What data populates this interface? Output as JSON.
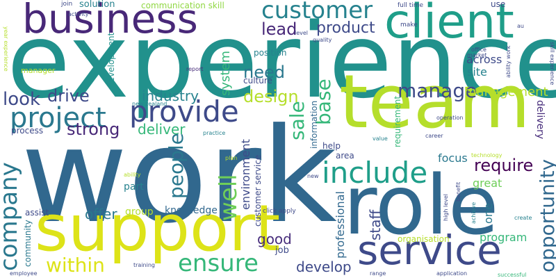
{
  "words": [
    {
      "text": "experience",
      "color": "#21918c"
    },
    {
      "text": "work",
      "color": "#31688e"
    },
    {
      "text": "team",
      "color": "#b5de2b"
    },
    {
      "text": "support",
      "color": "#dde318"
    },
    {
      "text": "role",
      "color": "#31688e"
    },
    {
      "text": "client",
      "color": "#1f9e89"
    },
    {
      "text": "business",
      "color": "#482878"
    },
    {
      "text": "service",
      "color": "#3e4a89"
    },
    {
      "text": "customer",
      "color": "#26828e"
    },
    {
      "text": "provide",
      "color": "#3e4a89"
    },
    {
      "text": "project",
      "color": "#2a788e"
    },
    {
      "text": "include",
      "color": "#1f9e89"
    },
    {
      "text": "company",
      "color": "#2a788e"
    },
    {
      "text": "ensure",
      "color": "#35b779"
    },
    {
      "text": "well",
      "color": "#6ece58"
    },
    {
      "text": "people",
      "color": "#2a788e"
    },
    {
      "text": "manage",
      "color": "#3e4a89"
    },
    {
      "text": "require",
      "color": "#440154"
    },
    {
      "text": "look",
      "color": "#3e4a89"
    },
    {
      "text": "within",
      "color": "#dde318"
    },
    {
      "text": "opportunity",
      "color": "#31688e"
    },
    {
      "text": "sale",
      "color": "#35b779"
    },
    {
      "text": "base",
      "color": "#35b779"
    },
    {
      "text": "design",
      "color": "#b5de2b"
    },
    {
      "text": "drive",
      "color": "#3e4a89"
    },
    {
      "text": "strong",
      "color": "#482878"
    },
    {
      "text": "lead",
      "color": "#482878"
    },
    {
      "text": "product",
      "color": "#3e4a89"
    },
    {
      "text": "need",
      "color": "#2a788e"
    },
    {
      "text": "deliver",
      "color": "#35b779"
    },
    {
      "text": "industry",
      "color": "#26828e"
    },
    {
      "text": "management",
      "color": "#b5de2b"
    },
    {
      "text": "develop",
      "color": "#3e4a89"
    },
    {
      "text": "good",
      "color": "#472d7b"
    },
    {
      "text": "offer",
      "color": "#2a788e"
    },
    {
      "text": "staff",
      "color": "#3e4a89"
    },
    {
      "text": "program",
      "color": "#35b779"
    },
    {
      "text": "system",
      "color": "#35b779"
    },
    {
      "text": "environment",
      "color": "#3e4a89"
    },
    {
      "text": "focus",
      "color": "#2a788e"
    },
    {
      "text": "great",
      "color": "#6ece58"
    },
    {
      "text": "across",
      "color": "#3e4a89"
    },
    {
      "text": "site",
      "color": "#26828e"
    },
    {
      "text": "professional",
      "color": "#31688e"
    },
    {
      "text": "one",
      "color": "#2a788e"
    },
    {
      "text": "knowledge",
      "color": "#31688e"
    },
    {
      "text": "part",
      "color": "#26828e"
    },
    {
      "text": "group",
      "color": "#b5de2b"
    },
    {
      "text": "solution",
      "color": "#26828e"
    },
    {
      "text": "communication skill",
      "color": "#90d743"
    },
    {
      "text": "position",
      "color": "#26828e"
    },
    {
      "text": "culture",
      "color": "#3e4a89"
    },
    {
      "text": "development",
      "color": "#21918c"
    },
    {
      "text": "help",
      "color": "#3e4a89"
    },
    {
      "text": "area",
      "color": "#3e4a89"
    },
    {
      "text": "job",
      "color": "#3e4a89"
    },
    {
      "text": "organisation",
      "color": "#b5de2b"
    },
    {
      "text": "delivery",
      "color": "#472d7b"
    },
    {
      "text": "customer service",
      "color": "#3e4a89"
    },
    {
      "text": "information",
      "color": "#31688e"
    },
    {
      "text": "requirement",
      "color": "#35b779"
    },
    {
      "text": "assist",
      "color": "#3e4a89"
    },
    {
      "text": "community",
      "color": "#2a788e"
    },
    {
      "text": "manager",
      "color": "#b5de2b"
    },
    {
      "text": "process",
      "color": "#3e4a89"
    },
    {
      "text": "use",
      "color": "#3e4a89"
    },
    {
      "text": "full time",
      "color": "#3e4a89"
    },
    {
      "text": "join",
      "color": "#3e4a89"
    },
    {
      "text": "make",
      "color": "#3e4a89"
    },
    {
      "text": "level",
      "color": "#3e4a89"
    },
    {
      "text": "quality",
      "color": "#3e4a89"
    },
    {
      "text": "report",
      "color": "#472d7b"
    },
    {
      "text": "new zealand",
      "color": "#26828e"
    },
    {
      "text": "activity",
      "color": "#3e4a89"
    },
    {
      "text": "operation",
      "color": "#3e4a89"
    },
    {
      "text": "career",
      "color": "#3e4a89"
    },
    {
      "text": "value",
      "color": "#26828e"
    },
    {
      "text": "practice",
      "color": "#26828e"
    },
    {
      "text": "plan",
      "color": "#b5de2b"
    },
    {
      "text": "ability",
      "color": "#b5de2b"
    },
    {
      "text": "new",
      "color": "#3e4a89"
    },
    {
      "text": "click apply",
      "color": "#3e4a89"
    },
    {
      "text": "training",
      "color": "#3e4a89"
    },
    {
      "text": "employee",
      "color": "#3e4a89"
    },
    {
      "text": "range",
      "color": "#3e4a89"
    },
    {
      "text": "application",
      "color": "#3e4a89"
    },
    {
      "text": "successful",
      "color": "#35b779"
    },
    {
      "text": "technology",
      "color": "#b5de2b"
    },
    {
      "text": "create",
      "color": "#26828e"
    },
    {
      "text": "office",
      "color": "#3e4a89"
    },
    {
      "text": "market",
      "color": "#3e4a89"
    },
    {
      "text": "au",
      "color": "#3e4a89"
    },
    {
      "text": "ability work",
      "color": "#3e4a89"
    },
    {
      "text": "skill experience",
      "color": "#3e4a89"
    },
    {
      "text": "year experience",
      "color": "#b5de2b"
    },
    {
      "text": "technical",
      "color": "#31688e"
    },
    {
      "text": "high level",
      "color": "#3e4a89"
    },
    {
      "text": "benefit",
      "color": "#3e4a89"
    },
    {
      "text": "achieve",
      "color": "#26828e"
    }
  ]
}
